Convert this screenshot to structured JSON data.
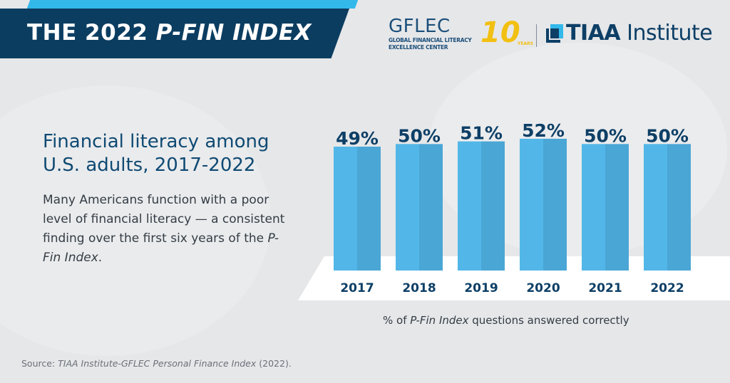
{
  "header": {
    "title_prefix": "THE 2022 ",
    "title_italic": "P-FIN INDEX",
    "gflec_name": "GFLEC",
    "gflec_line1": "GLOBAL FINANCIAL LITERACY",
    "gflec_line2": "EXCELLENCE CENTER",
    "anniversary": "10",
    "anniversary_sub": "YEARS",
    "tiaa_brand": "TIAA",
    "tiaa_suffix": " Institute"
  },
  "intro": {
    "heading": "Financial literacy among U.S. adults, 2017-2022",
    "body_text": "Many Americans function with a poor level of financial literacy — a consistent finding over the first six years of the ",
    "body_italic": "P-Fin Index",
    "body_end": "."
  },
  "source": {
    "label": "Source: ",
    "italic": "TIAA Institute-GFLEC Personal Finance Index",
    "end": " (2022)."
  },
  "colors": {
    "navy": "#0b3d61",
    "bar_light": "#52b7e8",
    "bar_dark": "#4aa6d5",
    "accent_blue": "#33b8ea",
    "gold": "#f2c012"
  },
  "chart_data": {
    "type": "bar",
    "categories": [
      "2017",
      "2018",
      "2019",
      "2020",
      "2021",
      "2022"
    ],
    "values": [
      49,
      50,
      51,
      52,
      50,
      50
    ],
    "data_labels": [
      "49%",
      "50%",
      "51%",
      "52%",
      "50%",
      "50%"
    ],
    "caption_prefix": "% of ",
    "caption_italic": "P-Fin Index",
    "caption_suffix": " questions answered correctly",
    "unit": "%",
    "grid": false
  }
}
